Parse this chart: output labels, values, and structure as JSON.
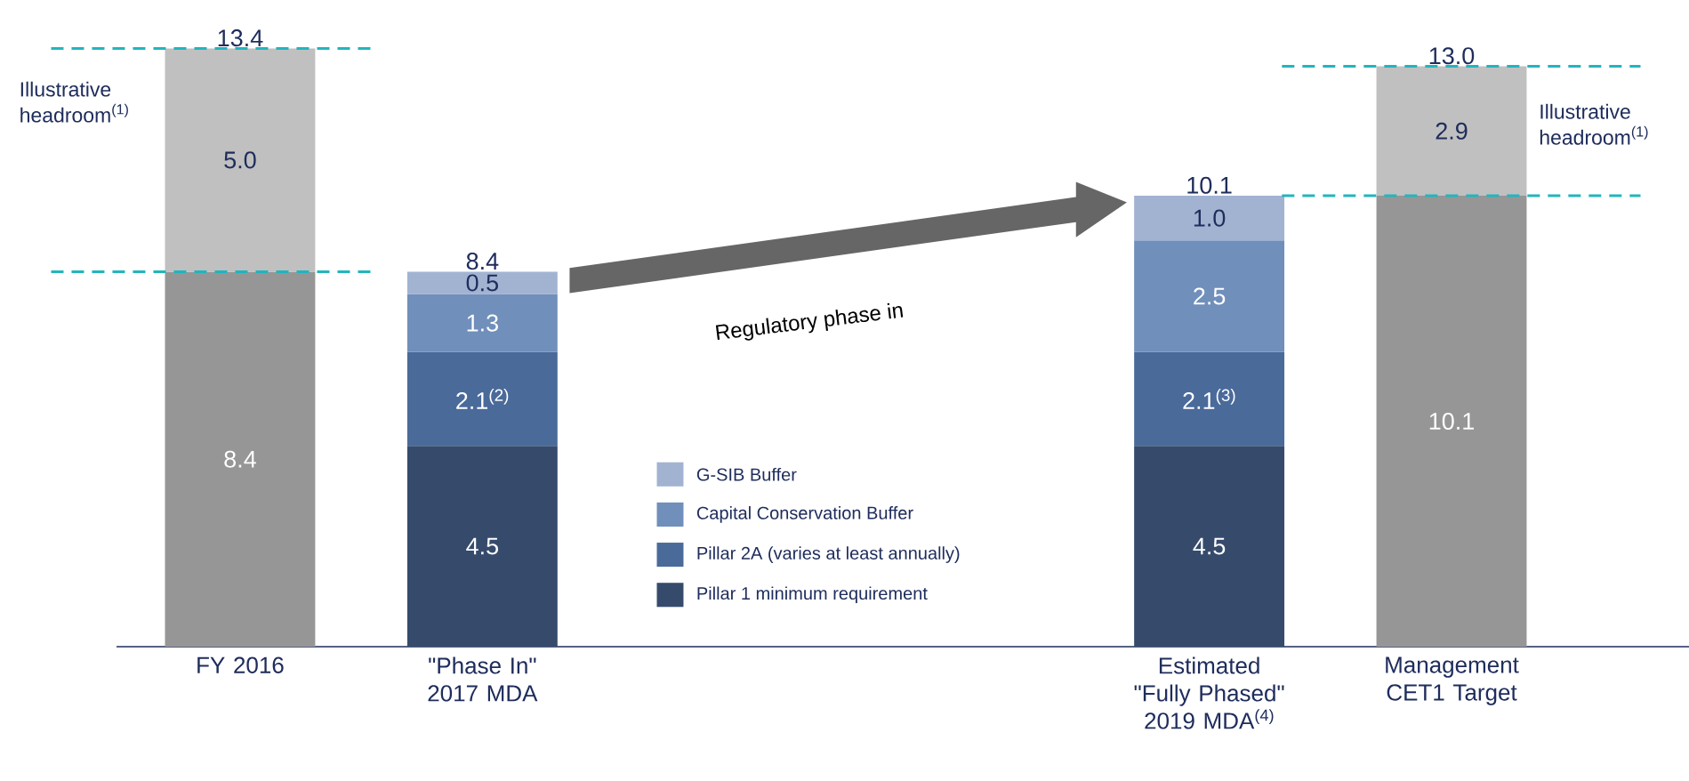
{
  "chart_data": {
    "type": "bar",
    "stacked": true,
    "categories": [
      "FY 2016",
      "\"Phase In\" 2017 MDA",
      null,
      null,
      "Estimated \"Fully Phased\" 2019 MDA$^{(4)}$",
      "Management CET1 Target"
    ],
    "series": [
      {
        "color": "#969696",
        "values": [
          8.4,
          null,
          null,
          null,
          null,
          10.1
        ],
        "value_labels": [
          "8.4",
          null,
          null,
          null,
          null,
          "10.1"
        ]
      },
      {
        "color": "#c0c0c0",
        "values": [
          5.0,
          null,
          null,
          null,
          null,
          2.9
        ],
        "value_labels": [
          "5.0",
          null,
          null,
          null,
          null,
          "2.9"
        ]
      },
      {
        "name": "Pillar 1 minimum requirement",
        "color": "#364b6c",
        "values": [
          null,
          4.5,
          null,
          null,
          4.5,
          null
        ],
        "value_labels": [
          null,
          "4.5",
          null,
          null,
          "4.5",
          null
        ]
      },
      {
        "name": "Pillar 2A (varies at least annually)",
        "color": "#4a6a9a",
        "values": [
          null,
          2.1,
          null,
          null,
          2.1,
          null
        ],
        "value_labels": [
          null,
          "2.1$^{(2)}$",
          null,
          null,
          "2.1$^{(3)}$",
          null
        ]
      },
      {
        "name": "Capital Conservation Buffer",
        "color": "#708fbb",
        "values": [
          null,
          1.3,
          null,
          null,
          2.5,
          null
        ],
        "value_labels": [
          null,
          "1.3",
          null,
          null,
          "2.5",
          null
        ]
      },
      {
        "name": "G-SIB Buffer",
        "color": "#a2b3d2",
        "values": [
          null,
          0.5,
          null,
          null,
          1.0,
          null
        ],
        "value_labels": [
          null,
          "0.5",
          null,
          null,
          "1.0",
          null
        ]
      }
    ],
    "totals": [
      "13.4",
      "8.4",
      null,
      null,
      "10.1",
      "13.0"
    ],
    "tick_labels": "x",
    "legend": "bottom",
    "ref_lines": [
      {
        "axis": "y",
        "value": 13.4,
        "color": "#22b5bd",
        "line_style": "dashed"
      },
      {
        "axis": "y",
        "value": 8.4,
        "color": "#22b5bd",
        "line_style": "dashed"
      },
      {
        "axis": "y",
        "value": 13.0,
        "color": "#22b5bd",
        "line_style": "dashed"
      },
      {
        "axis": "y",
        "value": 10.1,
        "color": "#22b5bd",
        "line_style": "dashed"
      }
    ],
    "annotations": [
      "Illustrative headroom$^{(1)}$",
      "Illustrative headroom$^{(1)}$",
      "Regulatory phase in"
    ]
  }
}
